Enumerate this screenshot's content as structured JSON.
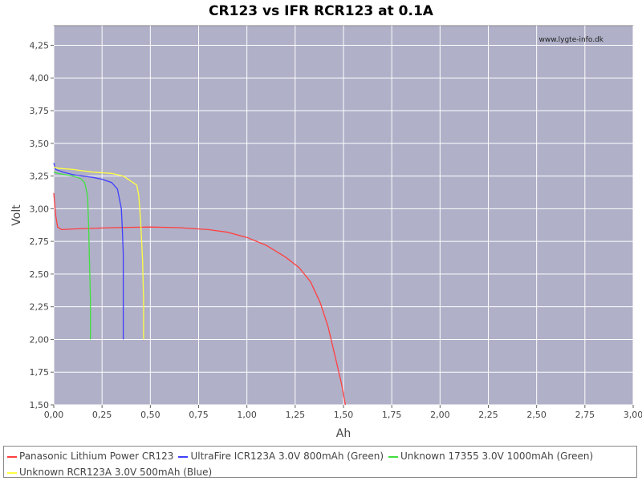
{
  "chart_data": {
    "type": "line",
    "title": "CR123 vs IFR RCR123 at 0.1A",
    "xlabel": "Ah",
    "ylabel": "Volt",
    "watermark": "www.lygte-info.dk",
    "xlim": [
      0,
      3.0
    ],
    "ylim": [
      1.5,
      4.4
    ],
    "xticks": [
      "0,00",
      "0,25",
      "0,50",
      "0,75",
      "1,00",
      "1,25",
      "1,50",
      "1,75",
      "2,00",
      "2,25",
      "2,50",
      "2,75",
      "3,00"
    ],
    "yticks": [
      "1,50",
      "1,75",
      "2,00",
      "2,25",
      "2,50",
      "2,75",
      "3,00",
      "3,25",
      "3,50",
      "3,75",
      "4,00",
      "4,25"
    ],
    "grid": true,
    "legend_position": "bottom",
    "plot_background": "#b0b0c8",
    "series": [
      {
        "name": "Panasonic Lithium Power CR123",
        "color": "#ff4040",
        "points": [
          [
            0,
            3.12
          ],
          [
            0.01,
            2.95
          ],
          [
            0.02,
            2.86
          ],
          [
            0.04,
            2.84
          ],
          [
            0.1,
            2.845
          ],
          [
            0.3,
            2.855
          ],
          [
            0.5,
            2.86
          ],
          [
            0.65,
            2.855
          ],
          [
            0.8,
            2.84
          ],
          [
            0.9,
            2.82
          ],
          [
            1.0,
            2.78
          ],
          [
            1.1,
            2.72
          ],
          [
            1.2,
            2.63
          ],
          [
            1.27,
            2.55
          ],
          [
            1.33,
            2.44
          ],
          [
            1.38,
            2.28
          ],
          [
            1.42,
            2.1
          ],
          [
            1.46,
            1.85
          ],
          [
            1.49,
            1.66
          ],
          [
            1.51,
            1.5
          ]
        ]
      },
      {
        "name": "UltraFire ICR123A 3.0V 800mAh (Green)",
        "color": "#4040ff",
        "points": [
          [
            0,
            3.35
          ],
          [
            0.01,
            3.3
          ],
          [
            0.05,
            3.28
          ],
          [
            0.1,
            3.26
          ],
          [
            0.15,
            3.25
          ],
          [
            0.2,
            3.24
          ],
          [
            0.25,
            3.225
          ],
          [
            0.3,
            3.2
          ],
          [
            0.33,
            3.15
          ],
          [
            0.35,
            3.0
          ],
          [
            0.355,
            2.85
          ],
          [
            0.36,
            2.65
          ],
          [
            0.36,
            2.2
          ],
          [
            0.36,
            2.0
          ]
        ]
      },
      {
        "name": "Unknown 17355 3.0V 1000mAh (Green)",
        "color": "#40e040",
        "points": [
          [
            0,
            3.28
          ],
          [
            0.02,
            3.27
          ],
          [
            0.06,
            3.26
          ],
          [
            0.1,
            3.25
          ],
          [
            0.14,
            3.23
          ],
          [
            0.16,
            3.2
          ],
          [
            0.175,
            3.1
          ],
          [
            0.18,
            2.9
          ],
          [
            0.185,
            2.6
          ],
          [
            0.19,
            2.3
          ],
          [
            0.19,
            2.0
          ]
        ]
      },
      {
        "name": "Unknown RCR123A 3.0V 500mAh (Blue)",
        "color": "#ffff40",
        "points": [
          [
            0,
            3.32
          ],
          [
            0.02,
            3.31
          ],
          [
            0.1,
            3.3
          ],
          [
            0.2,
            3.28
          ],
          [
            0.3,
            3.27
          ],
          [
            0.36,
            3.25
          ],
          [
            0.4,
            3.21
          ],
          [
            0.43,
            3.18
          ],
          [
            0.44,
            3.1
          ],
          [
            0.45,
            2.9
          ],
          [
            0.46,
            2.6
          ],
          [
            0.465,
            2.3
          ],
          [
            0.465,
            2.0
          ]
        ]
      }
    ]
  }
}
